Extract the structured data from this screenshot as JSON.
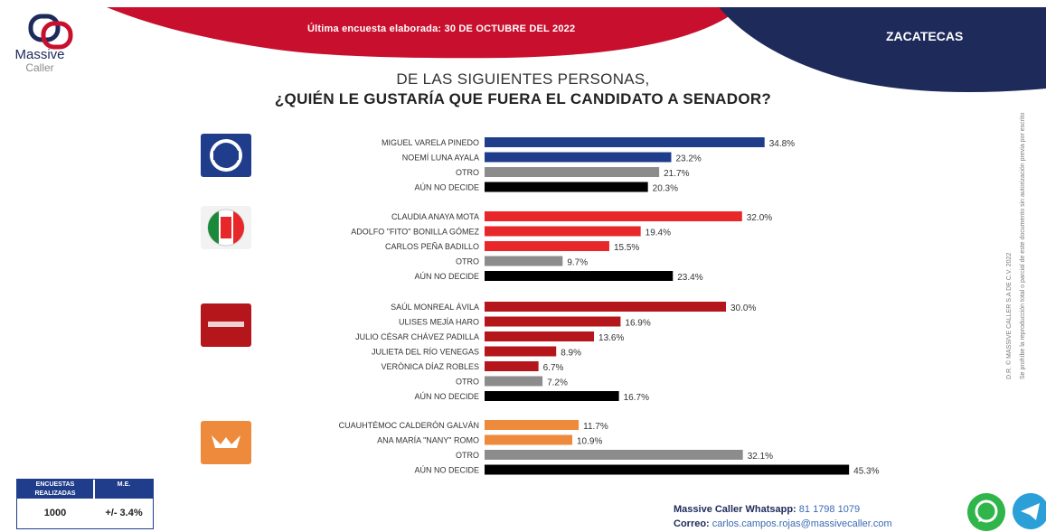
{
  "header": {
    "brand_line1": "Massive",
    "brand_line2": "Caller",
    "note": "Última encuesta elaborada: 30 DE OCTUBRE DEL 2022",
    "state": "ZACATECAS"
  },
  "colors": {
    "pan": "#1f3d8a",
    "pri": "#e8272a",
    "morena": "#b5161c",
    "mc": "#ee8a3b",
    "otro": "#8c8c8c",
    "aun_no_decide": "#000000",
    "banner_red": "#c8102e",
    "banner_navy": "#1e2a5a"
  },
  "chart_data": {
    "type": "bar",
    "orientation": "horizontal",
    "title": "DE LAS SIGUIENTES PERSONAS,",
    "subtitle": "¿QUIÉN LE GUSTARÍA QUE FUERA EL CANDIDATO A SENADOR?",
    "unit": "%",
    "xlim": [
      0,
      50
    ],
    "groups": [
      {
        "party": "PAN",
        "icon": "pan-logo",
        "items": [
          {
            "label": "MIGUEL VARELA PINEDO",
            "value": 34.8,
            "display": "34.8%",
            "color": "pan"
          },
          {
            "label": "NOEMÍ LUNA AYALA",
            "value": 23.2,
            "display": "23.2%",
            "color": "pan"
          },
          {
            "label": "OTRO",
            "value": 21.7,
            "display": "21.7%",
            "color": "otro"
          },
          {
            "label": "AÚN NO DECIDE",
            "value": 20.3,
            "display": "20.3%",
            "color": "aun_no_decide"
          }
        ]
      },
      {
        "party": "PRI",
        "icon": "pri-logo",
        "items": [
          {
            "label": "CLAUDIA ANAYA MOTA",
            "value": 32.0,
            "display": "32.0%",
            "color": "pri"
          },
          {
            "label": "ADOLFO \"FITO\" BONILLA GÓMEZ",
            "value": 19.4,
            "display": "19.4%",
            "color": "pri"
          },
          {
            "label": "CARLOS PEÑA BADILLO",
            "value": 15.5,
            "display": "15.5%",
            "color": "pri"
          },
          {
            "label": "OTRO",
            "value": 9.7,
            "display": "9.7%",
            "color": "otro"
          },
          {
            "label": "AÚN NO DECIDE",
            "value": 23.4,
            "display": "23.4%",
            "color": "aun_no_decide"
          }
        ]
      },
      {
        "party": "MORENA",
        "icon": "morena-logo",
        "items": [
          {
            "label": "SAÚL MONREAL ÁVILA",
            "value": 30.0,
            "display": "30.0%",
            "color": "morena"
          },
          {
            "label": "ULISES MEJÍA HARO",
            "value": 16.9,
            "display": "16.9%",
            "color": "morena"
          },
          {
            "label": "JULIO CÉSAR CHÁVEZ PADILLA",
            "value": 13.6,
            "display": "13.6%",
            "color": "morena"
          },
          {
            "label": "JULIETA DEL RÍO VENEGAS",
            "value": 8.9,
            "display": "8.9%",
            "color": "morena"
          },
          {
            "label": "VERÓNICA DÍAZ ROBLES",
            "value": 6.7,
            "display": "6.7%",
            "color": "morena"
          },
          {
            "label": "OTRO",
            "value": 7.2,
            "display": "7.2%",
            "color": "otro"
          },
          {
            "label": "AÚN NO DECIDE",
            "value": 16.7,
            "display": "16.7%",
            "color": "aun_no_decide"
          }
        ]
      },
      {
        "party": "MC",
        "icon": "mc-logo",
        "items": [
          {
            "label": "CUAUHTÉMOC CALDERÓN GALVÁN",
            "value": 11.7,
            "display": "11.7%",
            "color": "mc"
          },
          {
            "label": "ANA MARÍA \"NANY\" ROMO",
            "value": 10.9,
            "display": "10.9%",
            "color": "mc"
          },
          {
            "label": "OTRO",
            "value": 32.1,
            "display": "32.1%",
            "color": "otro"
          },
          {
            "label": "AÚN NO DECIDE",
            "value": 45.3,
            "display": "45.3%",
            "color": "aun_no_decide"
          }
        ]
      }
    ]
  },
  "stats": {
    "col1_header": "ENCUESTAS REALIZADAS",
    "col2_header": "M.E.",
    "col1_value": "1000",
    "col2_value": "+/- 3.4%"
  },
  "footer": {
    "whatsapp_label": "Massive Caller Whatsapp:",
    "whatsapp_number": "81 1798 1079",
    "email_label": "Correo:",
    "email": "carlos.campos.rojas@massivecaller.com"
  },
  "side_credit": "D.R. © MASSIVE CALLER S.A DE C.V. 2022",
  "side_credit2": "Se prohíbe la reproducción total o parcial de este documento sin autorización previa por escrito"
}
